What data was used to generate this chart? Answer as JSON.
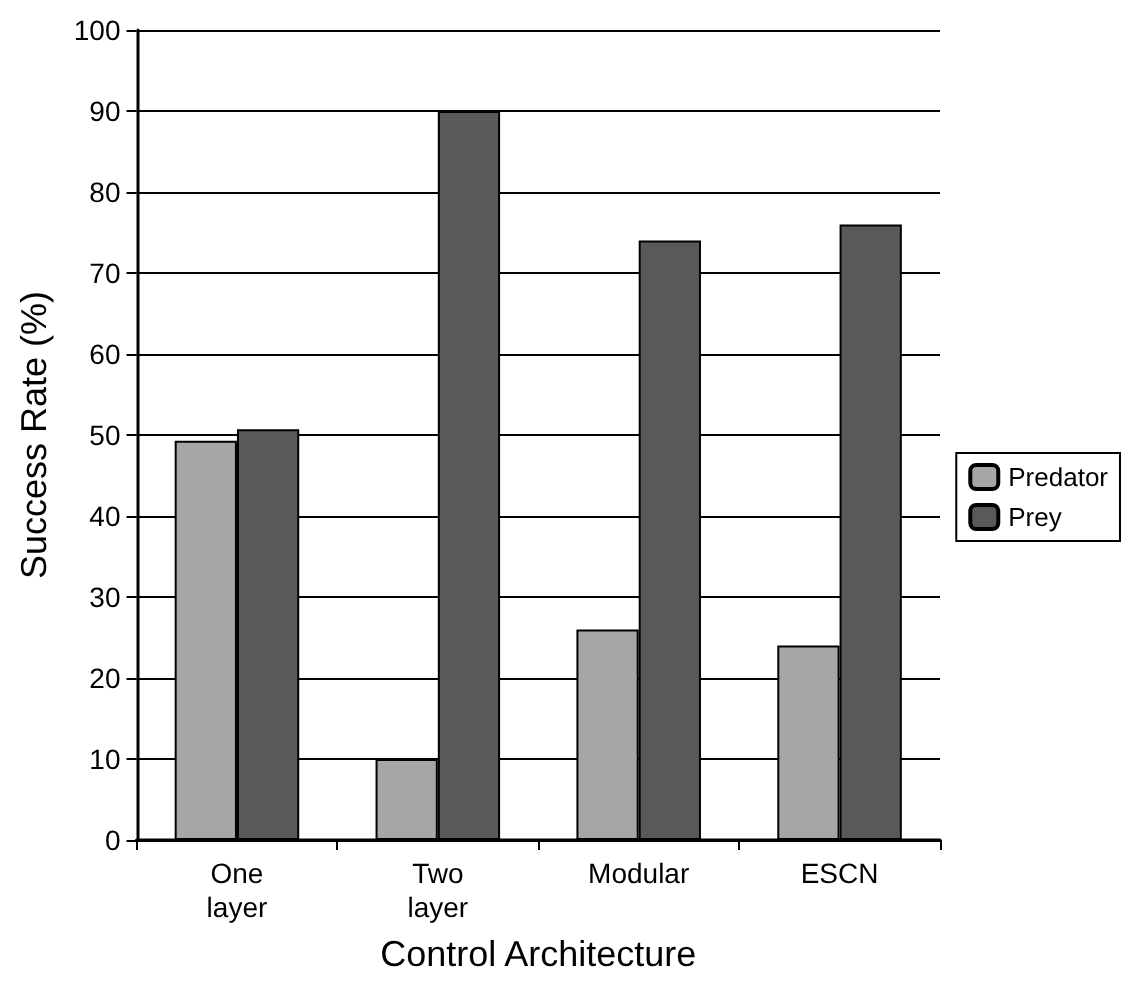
{
  "chart_data": {
    "type": "bar",
    "xlabel": "Control Architecture",
    "ylabel": "Success Rate (%)",
    "categories": [
      "One layer",
      "Two layer",
      "Modular",
      "ESCN"
    ],
    "series": [
      {
        "name": "Predator",
        "color": "#a6a6a6",
        "values": [
          49.3,
          10,
          26,
          24
        ]
      },
      {
        "name": "Prey",
        "color": "#595959",
        "values": [
          50.7,
          90,
          74,
          76
        ]
      }
    ],
    "ylim": [
      0,
      100
    ],
    "yticks": [
      0,
      10,
      20,
      30,
      40,
      50,
      60,
      70,
      80,
      90,
      100
    ],
    "grid": "y",
    "legend": "right"
  }
}
